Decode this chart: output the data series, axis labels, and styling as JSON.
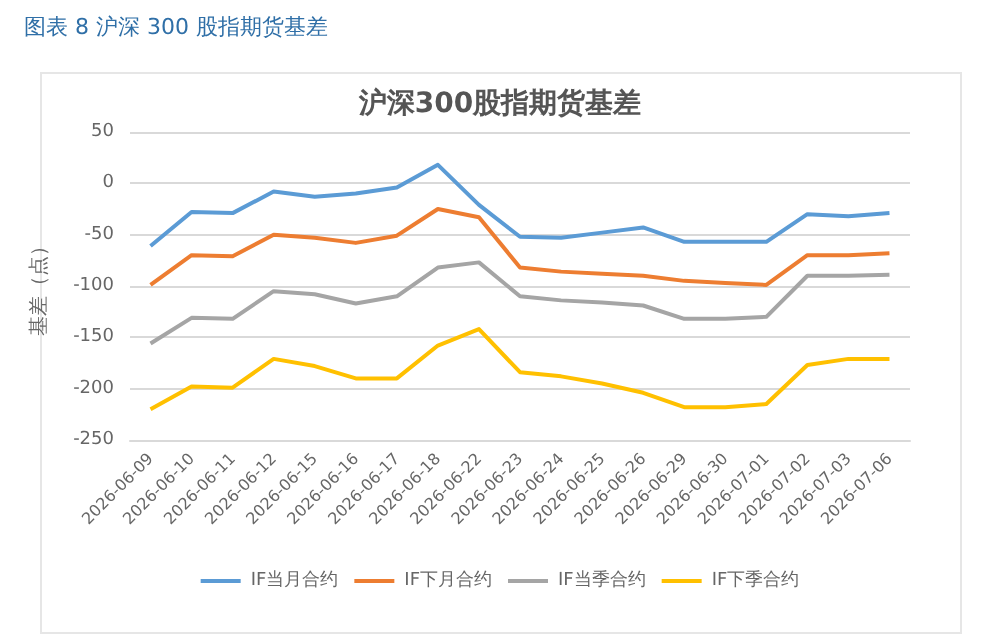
{
  "chart_data": {
    "type": "line",
    "title": "沪深300股指期货基差",
    "subtitle": "图表 8 沪深 300 股指期货基差",
    "ylabel": "基差（点）",
    "categories": [
      "2026-06-09",
      "2026-06-10",
      "2026-06-11",
      "2026-06-12",
      "2026-06-15",
      "2026-06-16",
      "2026-06-17",
      "2026-06-18",
      "2026-06-22",
      "2026-06-23",
      "2026-06-24",
      "2026-06-25",
      "2026-06-26",
      "2026-06-29",
      "2026-06-30",
      "2026-07-01",
      "2026-07-02",
      "2026-07-03",
      "2026-07-06"
    ],
    "series": [
      {
        "name": "IF当月合约",
        "color": "#5b9bd5",
        "values": [
          -61,
          -28,
          -29,
          -8,
          -13,
          -10,
          -4,
          18,
          -21,
          -52,
          -53,
          -48,
          -43,
          -57,
          -57,
          -57,
          -30,
          -32,
          -29
        ]
      },
      {
        "name": "IF下月合约",
        "color": "#ed7d31",
        "values": [
          -99,
          -70,
          -71,
          -50,
          -53,
          -58,
          -51,
          -25,
          -33,
          -82,
          -86,
          -88,
          -90,
          -95,
          -97,
          -99,
          -70,
          -70,
          -68
        ]
      },
      {
        "name": "IF当季合约",
        "color": "#a5a5a5",
        "values": [
          -156,
          -131,
          -132,
          -105,
          -108,
          -117,
          -110,
          -82,
          -77,
          -110,
          -114,
          -116,
          -119,
          -132,
          -132,
          -130,
          -90,
          -90,
          -89
        ]
      },
      {
        "name": "IF下季合约",
        "color": "#ffc000",
        "values": [
          -220,
          -198,
          -199,
          -171,
          -178,
          -190,
          -190,
          -158,
          -142,
          -184,
          -188,
          -195,
          -204,
          -218,
          -218,
          -215,
          -177,
          -171,
          -171
        ]
      }
    ],
    "ylim": [
      -250,
      50
    ],
    "yticks": [
      -250,
      -200,
      -150,
      -100,
      -50,
      0,
      50
    ],
    "grid": "y",
    "legend": "bottom",
    "marker": "none",
    "line_style": "solid"
  }
}
